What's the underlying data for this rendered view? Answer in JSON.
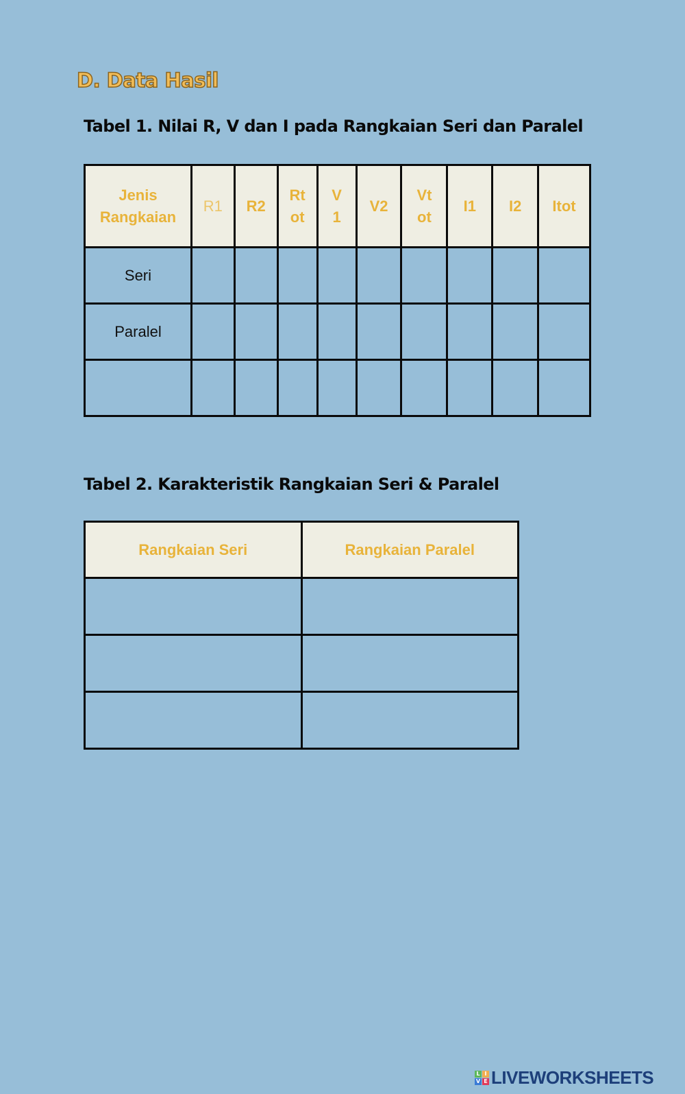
{
  "section_title": "D. Data Hasil",
  "table1": {
    "caption": "Tabel 1. Nilai R, V dan I pada Rangkaian Seri dan Paralel",
    "headers": [
      "Jenis Rangkaian",
      "R1",
      "R2",
      "Rt ot",
      "V 1",
      "V2",
      "Vt ot",
      "I1",
      "I2",
      "Itot"
    ],
    "rows": [
      "Seri",
      "Paralel",
      ""
    ]
  },
  "table2": {
    "caption": "Tabel 2. Karakteristik Rangkaian Seri & Paralel",
    "headers": [
      "Rangkaian Seri",
      "Rangkaian Paralel"
    ]
  },
  "logo": {
    "text": "LIVEWORKSHEETS",
    "letters": [
      "L",
      "I",
      "V",
      "E"
    ],
    "colors": [
      "#5cb85c",
      "#f0ad4e",
      "#3a7bd5",
      "#e03a5a"
    ]
  },
  "colors": {
    "background": "#97bed8",
    "header_bg": "#efeee3",
    "header_text": "#e8b33a",
    "title": "#f2bd58"
  }
}
